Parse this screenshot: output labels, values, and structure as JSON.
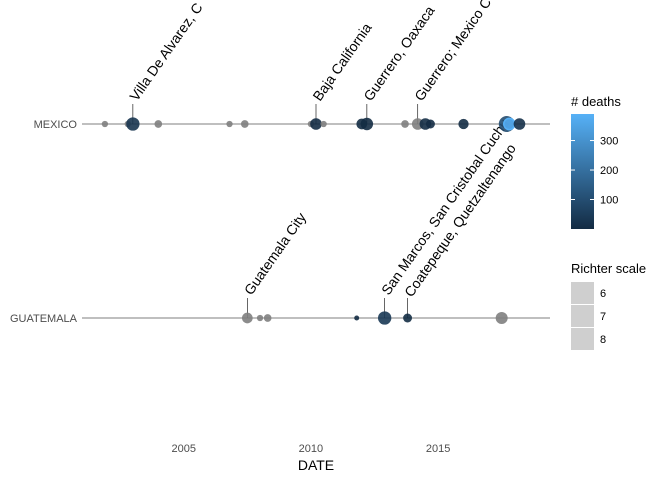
{
  "chart_data": {
    "type": "scatter",
    "xlabel": "DATE",
    "x_ticks": [
      2005,
      2010,
      2015
    ],
    "xlim": [
      2001.0,
      2019.4
    ],
    "categories": [
      "MEXICO",
      "GUATEMALA"
    ],
    "grid": false,
    "points": [
      {
        "country": "MEXICO",
        "year": 2001.9,
        "richter": 6.0,
        "deaths": null
      },
      {
        "country": "MEXICO",
        "year": 2002.8,
        "richter": 6.0,
        "deaths": null
      },
      {
        "country": "MEXICO",
        "year": 2003.0,
        "richter": 7.6,
        "deaths": 29
      },
      {
        "country": "MEXICO",
        "year": 2004.0,
        "richter": 6.3,
        "deaths": null
      },
      {
        "country": "MEXICO",
        "year": 2006.8,
        "richter": 6.0,
        "deaths": null
      },
      {
        "country": "MEXICO",
        "year": 2007.4,
        "richter": 6.3,
        "deaths": null
      },
      {
        "country": "MEXICO",
        "year": 2010.0,
        "richter": 6.0,
        "deaths": null
      },
      {
        "country": "MEXICO",
        "year": 2010.2,
        "richter": 7.2,
        "deaths": 4
      },
      {
        "country": "MEXICO",
        "year": 2010.5,
        "richter": 6.0,
        "deaths": null
      },
      {
        "country": "MEXICO",
        "year": 2012.0,
        "richter": 7.0,
        "deaths": 2
      },
      {
        "country": "MEXICO",
        "year": 2012.2,
        "richter": 7.4,
        "deaths": 2
      },
      {
        "country": "MEXICO",
        "year": 2013.7,
        "richter": 6.3,
        "deaths": null
      },
      {
        "country": "MEXICO",
        "year": 2014.2,
        "richter": 7.2,
        "deaths": null
      },
      {
        "country": "MEXICO",
        "year": 2014.5,
        "richter": 7.2,
        "deaths": 6
      },
      {
        "country": "MEXICO",
        "year": 2014.7,
        "richter": 6.6,
        "deaths": 4
      },
      {
        "country": "MEXICO",
        "year": 2016.0,
        "richter": 6.9,
        "deaths": 2
      },
      {
        "country": "MEXICO",
        "year": 2017.7,
        "richter": 8.2,
        "deaths": 98
      },
      {
        "country": "MEXICO",
        "year": 2017.8,
        "richter": 7.1,
        "deaths": 370
      },
      {
        "country": "MEXICO",
        "year": 2018.2,
        "richter": 7.2,
        "deaths": 14
      },
      {
        "country": "GUATEMALA",
        "year": 2007.5,
        "richter": 7.0,
        "deaths": null
      },
      {
        "country": "GUATEMALA",
        "year": 2008.0,
        "richter": 6.0,
        "deaths": null
      },
      {
        "country": "GUATEMALA",
        "year": 2008.3,
        "richter": 6.3,
        "deaths": null
      },
      {
        "country": "GUATEMALA",
        "year": 2011.8,
        "richter": 5.7,
        "deaths": 3
      },
      {
        "country": "GUATEMALA",
        "year": 2012.9,
        "richter": 7.6,
        "deaths": 39
      },
      {
        "country": "GUATEMALA",
        "year": 2013.8,
        "richter": 6.6,
        "deaths": 5
      },
      {
        "country": "GUATEMALA",
        "year": 2017.5,
        "richter": 7.3,
        "deaths": null
      }
    ],
    "annotations": [
      {
        "country": "MEXICO",
        "year": 2003.0,
        "text": "Villa De Alvarez, C"
      },
      {
        "country": "MEXICO",
        "year": 2010.2,
        "text": "Baja California"
      },
      {
        "country": "MEXICO",
        "year": 2012.2,
        "text": "Guerrero, Oaxaca"
      },
      {
        "country": "MEXICO",
        "year": 2014.2,
        "text": "Guerrero; Mexico C"
      },
      {
        "country": "GUATEMALA",
        "year": 2007.5,
        "text": "Guatemala City"
      },
      {
        "country": "GUATEMALA",
        "year": 2012.9,
        "text": "San Marcos, San Cristobal Cuchu"
      },
      {
        "country": "GUATEMALA",
        "year": 2013.8,
        "text": "Coatepeque, Quetzaltenango"
      }
    ],
    "legend": {
      "deaths": {
        "title": "# deaths",
        "ticks": [
          100,
          200,
          300
        ],
        "range": [
          0,
          390
        ],
        "color_low": "#132B43",
        "color_high": "#56B1F7",
        "na_color": "#808080"
      },
      "richter": {
        "title": "Richter scale",
        "entries": [
          "6",
          "7",
          "8"
        ]
      },
      "placement": "right"
    }
  }
}
